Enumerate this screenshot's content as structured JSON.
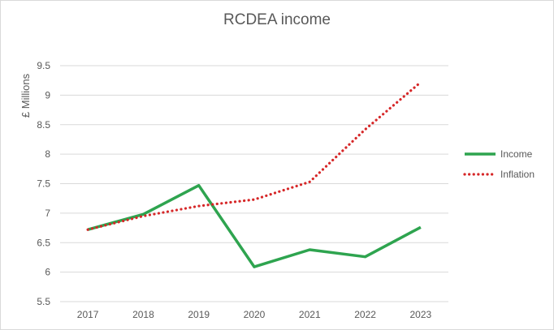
{
  "chart_data": {
    "type": "line",
    "title": "RCDEA income",
    "xlabel": "",
    "ylabel": "£ Millions",
    "categories": [
      "2017",
      "2018",
      "2019",
      "2020",
      "2021",
      "2022",
      "2023"
    ],
    "ylim": [
      5.5,
      9.5
    ],
    "yticks": [
      "5.5",
      "6",
      "6.5",
      "7",
      "7.5",
      "8",
      "8.5",
      "9",
      "9.5"
    ],
    "grid": true,
    "legend_position": "right",
    "series": [
      {
        "name": "Income",
        "color": "#2ea44f",
        "style": "solid",
        "values": [
          6.72,
          6.98,
          7.47,
          6.09,
          6.38,
          6.26,
          6.76
        ]
      },
      {
        "name": "Inflation",
        "color": "#d62728",
        "style": "dotted",
        "values": [
          6.72,
          6.95,
          7.12,
          7.23,
          7.53,
          8.42,
          9.22
        ]
      }
    ]
  }
}
